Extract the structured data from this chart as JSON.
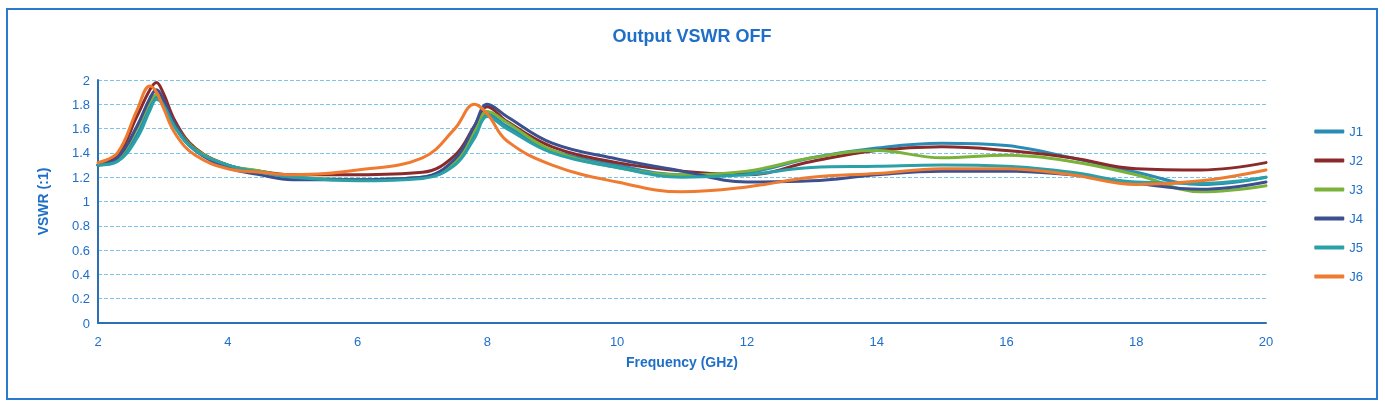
{
  "chart_data": {
    "type": "line",
    "title": "Output VSWR OFF",
    "xlabel": "Frequency (GHz)",
    "ylabel": "VSWR (:1)",
    "x": [
      2,
      2.3,
      2.6,
      2.8,
      2.9,
      3.0,
      3.2,
      3.5,
      4,
      4.5,
      5,
      6,
      7,
      7.5,
      7.8,
      8,
      8.3,
      9,
      10,
      11,
      12,
      13,
      14,
      15,
      16,
      17,
      18,
      19,
      20
    ],
    "xlim": [
      2,
      20
    ],
    "xticks": [
      2,
      4,
      6,
      8,
      10,
      12,
      14,
      16,
      18,
      20
    ],
    "ylim": [
      0,
      2
    ],
    "yticks": [
      0,
      0.2,
      0.4,
      0.6,
      0.8,
      1,
      1.2,
      1.4,
      1.6,
      1.8,
      2
    ],
    "grid": "y",
    "legend": "right",
    "marker": "none",
    "line_style": "solid",
    "series": [
      {
        "name": "J1",
        "color": "#2a8bb5",
        "values": [
          1.3,
          1.34,
          1.55,
          1.78,
          1.86,
          1.8,
          1.6,
          1.42,
          1.3,
          1.24,
          1.2,
          1.18,
          1.2,
          1.32,
          1.55,
          1.72,
          1.62,
          1.42,
          1.3,
          1.22,
          1.24,
          1.36,
          1.44,
          1.48,
          1.46,
          1.36,
          1.24,
          1.14,
          1.2
        ]
      },
      {
        "name": "J2",
        "color": "#8b2a2a",
        "values": [
          1.3,
          1.38,
          1.7,
          1.92,
          1.98,
          1.9,
          1.65,
          1.44,
          1.3,
          1.25,
          1.22,
          1.22,
          1.24,
          1.38,
          1.62,
          1.78,
          1.66,
          1.45,
          1.32,
          1.25,
          1.22,
          1.33,
          1.42,
          1.45,
          1.42,
          1.36,
          1.27,
          1.26,
          1.32
        ]
      },
      {
        "name": "J3",
        "color": "#7ab23a",
        "values": [
          1.3,
          1.35,
          1.6,
          1.82,
          1.88,
          1.82,
          1.62,
          1.43,
          1.3,
          1.25,
          1.2,
          1.18,
          1.2,
          1.33,
          1.58,
          1.74,
          1.65,
          1.42,
          1.28,
          1.22,
          1.25,
          1.36,
          1.42,
          1.36,
          1.38,
          1.33,
          1.22,
          1.08,
          1.13
        ]
      },
      {
        "name": "J4",
        "color": "#3c4f8e",
        "values": [
          1.3,
          1.36,
          1.62,
          1.85,
          1.92,
          1.85,
          1.62,
          1.42,
          1.28,
          1.22,
          1.18,
          1.18,
          1.2,
          1.35,
          1.62,
          1.8,
          1.7,
          1.48,
          1.35,
          1.25,
          1.16,
          1.17,
          1.22,
          1.25,
          1.25,
          1.22,
          1.15,
          1.1,
          1.16
        ]
      },
      {
        "name": "J5",
        "color": "#2aa0a8",
        "values": [
          1.3,
          1.33,
          1.52,
          1.75,
          1.84,
          1.8,
          1.6,
          1.42,
          1.3,
          1.24,
          1.2,
          1.17,
          1.19,
          1.3,
          1.52,
          1.7,
          1.6,
          1.4,
          1.28,
          1.2,
          1.22,
          1.28,
          1.29,
          1.3,
          1.29,
          1.24,
          1.16,
          1.15,
          1.2
        ]
      },
      {
        "name": "J6",
        "color": "#ee7b30",
        "values": [
          1.32,
          1.4,
          1.75,
          1.95,
          1.9,
          1.78,
          1.55,
          1.38,
          1.27,
          1.24,
          1.22,
          1.26,
          1.36,
          1.6,
          1.8,
          1.72,
          1.5,
          1.3,
          1.16,
          1.08,
          1.12,
          1.2,
          1.23,
          1.27,
          1.27,
          1.22,
          1.14,
          1.17,
          1.26
        ]
      }
    ]
  }
}
